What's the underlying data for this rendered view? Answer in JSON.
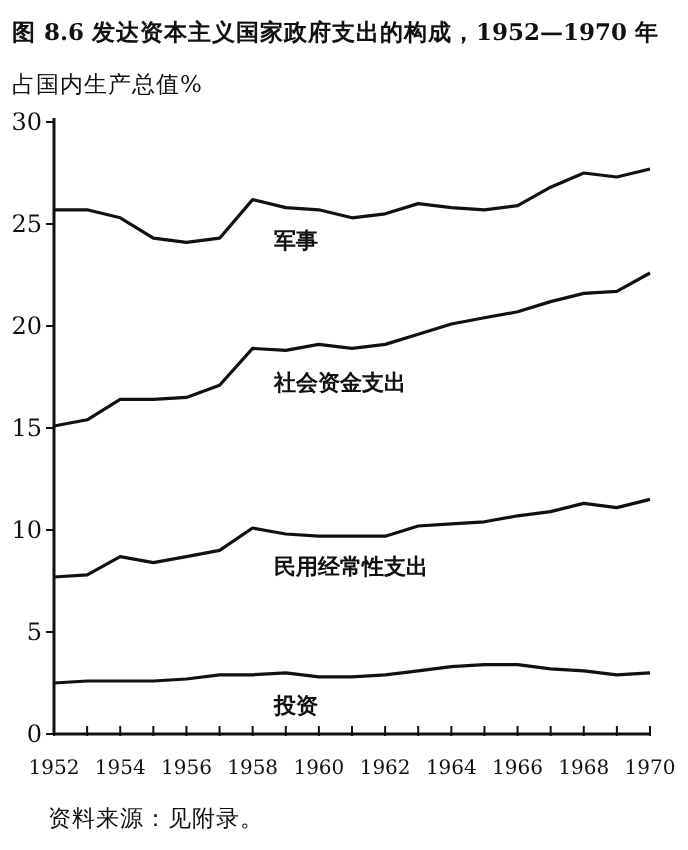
{
  "chart_data": {
    "type": "line",
    "title": "图 8.6 发达资本主义国家政府支出的构成，1952—1970 年",
    "ylabel": "占国内生产总值%",
    "annotations": [
      "资料来源：见附录。"
    ],
    "x": [
      1952,
      1953,
      1954,
      1955,
      1956,
      1957,
      1958,
      1959,
      1960,
      1961,
      1962,
      1963,
      1964,
      1965,
      1966,
      1967,
      1968,
      1969,
      1970
    ],
    "series": [
      {
        "name": "军事",
        "color": "#111111",
        "values": [
          25.7,
          25.7,
          25.3,
          24.3,
          24.1,
          24.3,
          26.2,
          25.8,
          25.7,
          25.3,
          25.5,
          26.0,
          25.8,
          25.7,
          25.9,
          26.8,
          27.5,
          27.3,
          27.7
        ]
      },
      {
        "name": "社会资金支出",
        "color": "#111111",
        "values": [
          15.1,
          15.4,
          16.4,
          16.4,
          16.5,
          17.1,
          18.9,
          18.8,
          19.1,
          18.9,
          19.1,
          19.6,
          20.1,
          20.4,
          20.7,
          21.2,
          21.6,
          21.7,
          22.6
        ]
      },
      {
        "name": "民用经常性支出",
        "color": "#111111",
        "values": [
          7.7,
          7.8,
          8.7,
          8.4,
          8.7,
          9.0,
          10.1,
          9.8,
          9.7,
          9.7,
          9.7,
          10.2,
          10.3,
          10.4,
          10.7,
          10.9,
          11.3,
          11.1,
          11.5
        ]
      },
      {
        "name": "投资",
        "color": "#111111",
        "values": [
          2.5,
          2.6,
          2.6,
          2.6,
          2.7,
          2.9,
          2.9,
          3.0,
          2.8,
          2.8,
          2.9,
          3.1,
          3.3,
          3.4,
          3.4,
          3.2,
          3.1,
          2.9,
          3.0
        ]
      }
    ],
    "xlim": [
      1952,
      1970
    ],
    "ylim": [
      0,
      30
    ],
    "xticks": [
      1952,
      {
        "value": 1953,
        "label": null
      },
      1954,
      {
        "value": 1955,
        "label": null
      },
      1956,
      {
        "value": 1957,
        "label": null
      },
      1958,
      {
        "value": 1959,
        "label": null
      },
      1960,
      {
        "value": 1961,
        "label": null
      },
      1962,
      {
        "value": 1963,
        "label": null
      },
      1964,
      {
        "value": 1965,
        "label": null
      },
      1966,
      {
        "value": 1967,
        "label": null
      },
      1968,
      {
        "value": 1969,
        "label": null
      },
      1970
    ],
    "yticks": [
      0,
      5,
      10,
      15,
      20,
      25,
      30
    ],
    "grid": false,
    "marker": "none",
    "line_style": "solid"
  }
}
